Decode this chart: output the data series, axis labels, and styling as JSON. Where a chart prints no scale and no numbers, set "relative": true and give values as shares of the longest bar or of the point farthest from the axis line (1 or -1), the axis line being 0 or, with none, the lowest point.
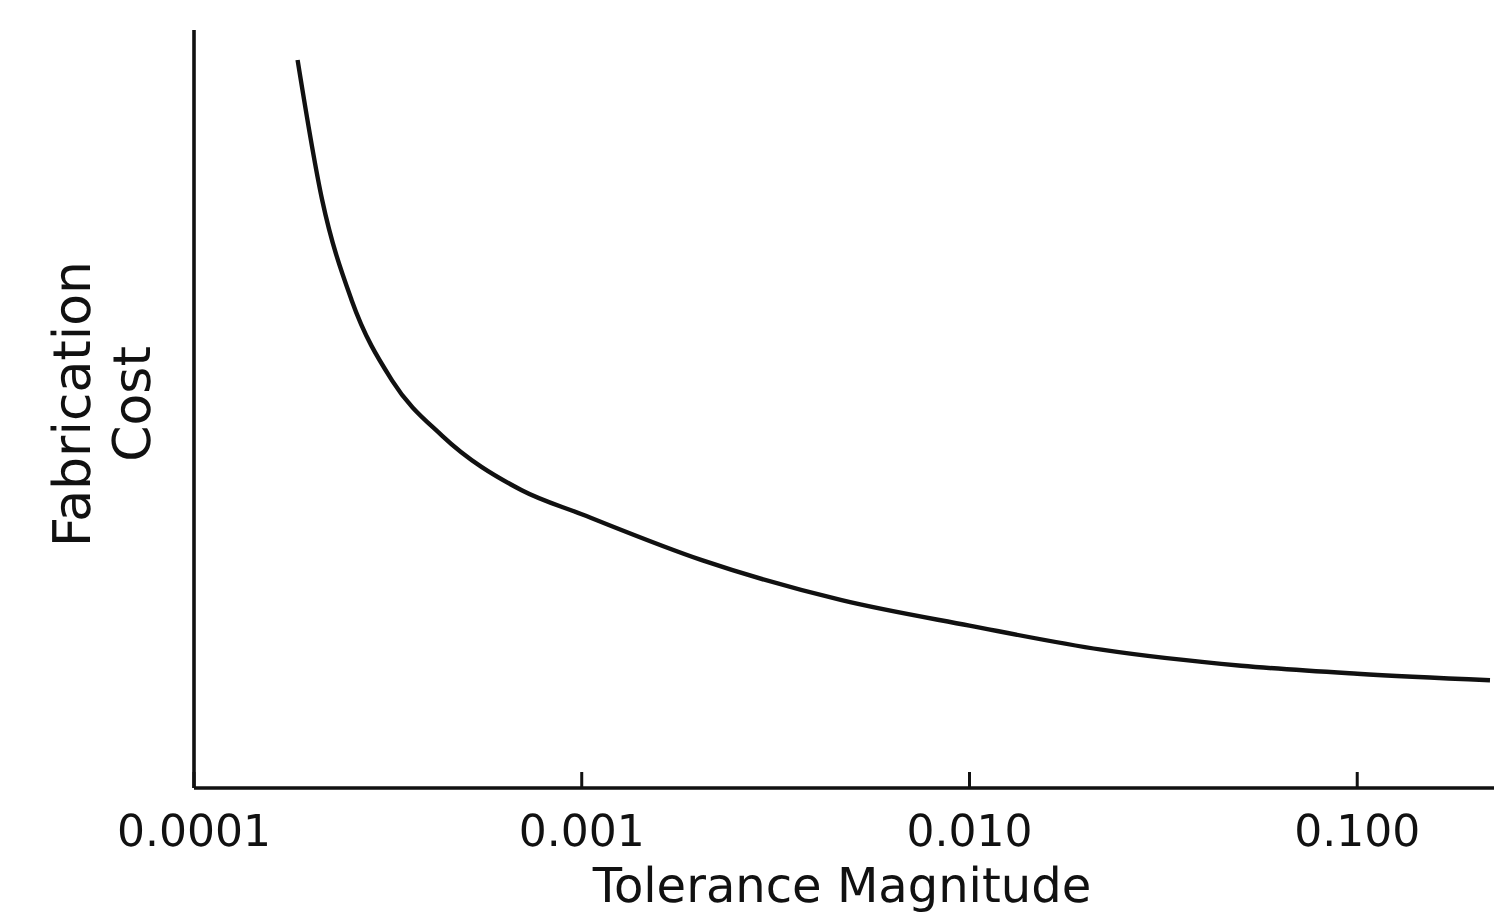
{
  "chart_data": {
    "type": "line",
    "xlabel": "Tolerance Magnitude",
    "ylabel": "Fabrication Cost",
    "log": "x",
    "relative": true,
    "xlim": [
      0.0001,
      0.22
    ],
    "xticks": [
      {
        "value": 0.0001,
        "label": "0.0001"
      },
      {
        "value": 0.001,
        "label": "0.001"
      },
      {
        "value": 0.01,
        "label": "0.010"
      },
      {
        "value": 0.1,
        "label": "0.100"
      }
    ],
    "grid": false,
    "marker": "none",
    "line_style": "solid",
    "series": [
      {
        "color": "#111111",
        "x": [
          0.000185,
          0.000214,
          0.000255,
          0.000324,
          0.000436,
          0.0007,
          0.001,
          0.00204,
          0.00468,
          0.01,
          0.0219,
          0.0502,
          0.1,
          0.22
        ],
        "values": [
          1,
          0.808,
          0.67,
          0.56,
          0.484,
          0.409,
          0.376,
          0.313,
          0.258,
          0.223,
          0.19,
          0.168,
          0.157,
          0.148
        ]
      }
    ]
  }
}
